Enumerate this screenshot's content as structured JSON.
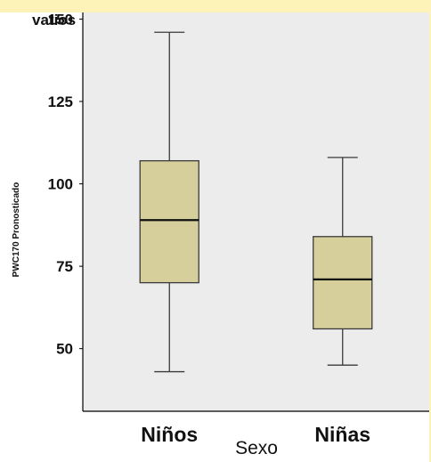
{
  "chart_data": {
    "type": "boxplot",
    "title": "",
    "unit_label": "vatios",
    "ylabel": "PWC170 Pronosticado",
    "xlabel": "Sexo",
    "ylim": [
      31,
      152
    ],
    "yticks": [
      50,
      75,
      100,
      125,
      150
    ],
    "categories": [
      "Niños",
      "Niñas"
    ],
    "series": [
      {
        "category": "Niños",
        "min": 43,
        "q1": 70,
        "median": 89,
        "q3": 107,
        "max": 146
      },
      {
        "category": "Niñas",
        "min": 45,
        "q1": 56,
        "median": 71,
        "q3": 84,
        "max": 108
      }
    ],
    "grid": false,
    "legend": "none"
  },
  "colors": {
    "plot_background": "#ececec",
    "box_fill": "#d6cf9b",
    "box_stroke": "#3a3a3a",
    "median_stroke": "#111111",
    "banner": "#fdf3b8"
  }
}
